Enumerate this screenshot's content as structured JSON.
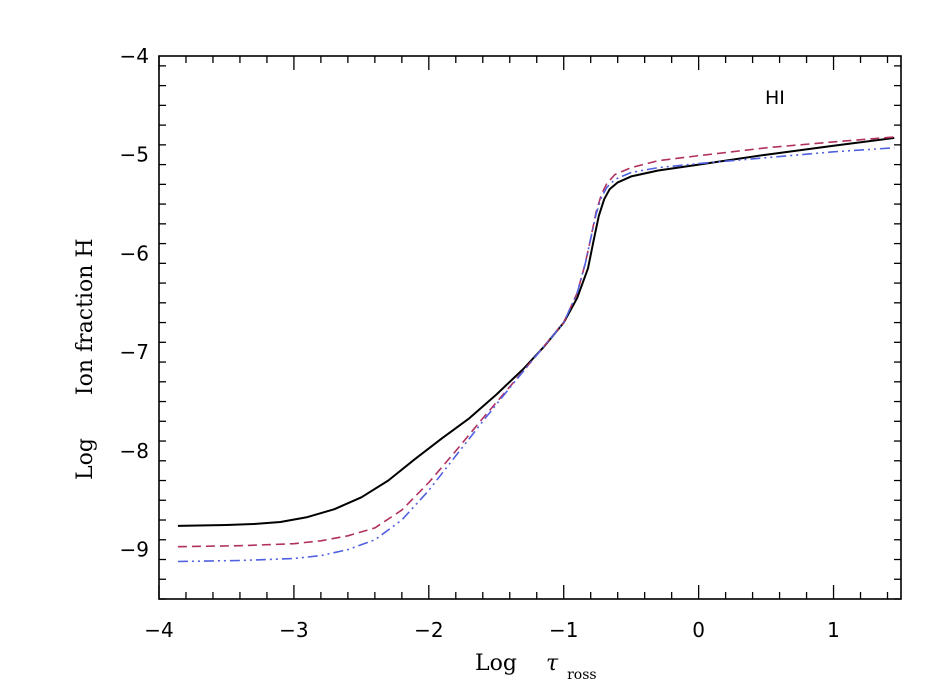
{
  "chart_data": {
    "type": "line",
    "xlabel": "Log",
    "xlabel_symbol": "τ",
    "xlabel_subscript": "ross",
    "ylabel_log": "Log",
    "ylabel_main": "Ion fraction H",
    "annotation": "HI",
    "xlim": [
      -4.0,
      1.5
    ],
    "ylim": [
      -9.5,
      -4.0
    ],
    "x_ticks": [
      -4,
      -3,
      -2,
      -1,
      0,
      1
    ],
    "x_tick_labels": [
      "−4",
      "−3",
      "−2",
      "−1",
      "0",
      "1"
    ],
    "y_ticks": [
      -9,
      -8,
      -7,
      -6,
      -5,
      -4
    ],
    "y_tick_labels": [
      "−9",
      "−8",
      "−7",
      "−6",
      "−5",
      "−4"
    ],
    "grid": false,
    "series": [
      {
        "color": "#000000",
        "style": "solid",
        "x": [
          -3.86,
          -3.5,
          -3.3,
          -3.1,
          -2.9,
          -2.7,
          -2.5,
          -2.3,
          -2.1,
          -1.9,
          -1.7,
          -1.5,
          -1.3,
          -1.15,
          -1.0,
          -0.9,
          -0.82,
          -0.78,
          -0.74,
          -0.7,
          -0.66,
          -0.6,
          -0.5,
          -0.3,
          0.0,
          0.5,
          1.0,
          1.45
        ],
        "y": [
          -8.76,
          -8.75,
          -8.74,
          -8.72,
          -8.67,
          -8.59,
          -8.47,
          -8.3,
          -8.08,
          -7.87,
          -7.67,
          -7.43,
          -7.17,
          -6.95,
          -6.7,
          -6.45,
          -6.15,
          -5.88,
          -5.62,
          -5.45,
          -5.35,
          -5.28,
          -5.22,
          -5.16,
          -5.1,
          -5.0,
          -4.91,
          -4.83
        ]
      },
      {
        "color": "#b03060",
        "style": "dashed",
        "x": [
          -3.86,
          -3.4,
          -3.0,
          -2.8,
          -2.6,
          -2.4,
          -2.2,
          -2.0,
          -1.8,
          -1.6,
          -1.4,
          -1.2,
          -1.0,
          -0.9,
          -0.84,
          -0.8,
          -0.76,
          -0.72,
          -0.68,
          -0.62,
          -0.5,
          -0.3,
          0.0,
          0.5,
          1.0,
          1.45
        ],
        "y": [
          -8.97,
          -8.96,
          -8.94,
          -8.91,
          -8.86,
          -8.78,
          -8.6,
          -8.32,
          -8.0,
          -7.67,
          -7.35,
          -7.03,
          -6.7,
          -6.4,
          -6.1,
          -5.85,
          -5.58,
          -5.4,
          -5.29,
          -5.2,
          -5.13,
          -5.06,
          -5.01,
          -4.93,
          -4.87,
          -4.82
        ]
      },
      {
        "color": "#5060e0",
        "style": "dash-dot-dot",
        "x": [
          -3.86,
          -3.4,
          -3.0,
          -2.8,
          -2.6,
          -2.4,
          -2.2,
          -2.0,
          -1.8,
          -1.6,
          -1.4,
          -1.2,
          -1.0,
          -0.9,
          -0.84,
          -0.8,
          -0.76,
          -0.72,
          -0.68,
          -0.62,
          -0.5,
          -0.3,
          0.0,
          0.5,
          1.0,
          1.45
        ],
        "y": [
          -9.12,
          -9.11,
          -9.09,
          -9.06,
          -9.0,
          -8.9,
          -8.7,
          -8.4,
          -8.05,
          -7.7,
          -7.36,
          -7.03,
          -6.7,
          -6.4,
          -6.1,
          -5.85,
          -5.6,
          -5.43,
          -5.33,
          -5.25,
          -5.18,
          -5.13,
          -5.09,
          -5.03,
          -4.97,
          -4.93
        ]
      }
    ]
  }
}
